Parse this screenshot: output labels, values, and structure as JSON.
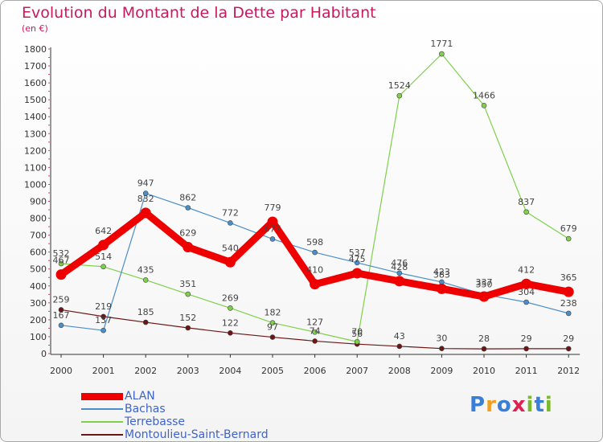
{
  "title": "Evolution du Montant de la Dette par Habitant",
  "unit": "(en €)",
  "brand": {
    "text": "Proxiti",
    "colors": [
      "#3a7fd5",
      "#f0a020",
      "#3a7fd5",
      "#e02050",
      "#7ab82c",
      "#3a7fd5",
      "#7ab82c"
    ]
  },
  "chart_data": {
    "type": "line",
    "title": "Evolution du Montant de la Dette par Habitant",
    "ylabel": "(en €)",
    "xlabel": "",
    "x": [
      "2000",
      "2001",
      "2002",
      "2003",
      "2004",
      "2005",
      "2006",
      "2007",
      "2008",
      "2009",
      "2010",
      "2011",
      "2012"
    ],
    "ylim": [
      0,
      1800
    ],
    "yticks": [
      0,
      100,
      200,
      300,
      400,
      500,
      600,
      700,
      800,
      900,
      1000,
      1100,
      1200,
      1300,
      1400,
      1500,
      1600,
      1700,
      1800
    ],
    "grid": false,
    "legend_position": "bottom-left",
    "series": [
      {
        "name": "ALAN",
        "color": "#ee0000",
        "values": [
          467,
          642,
          832,
          629,
          540,
          779,
          410,
          475,
          428,
          383,
          337,
          412,
          365
        ]
      },
      {
        "name": "Bachas",
        "color": "#4b8ec8",
        "values": [
          167,
          137,
          947,
          862,
          772,
          677,
          598,
          537,
          476,
          423,
          350,
          304,
          238
        ]
      },
      {
        "name": "Terrebasse",
        "color": "#7fd04a",
        "values": [
          532,
          514,
          435,
          351,
          269,
          182,
          127,
          70,
          1524,
          1771,
          1466,
          837,
          679
        ]
      },
      {
        "name": "Montoulieu-Saint-Bernard",
        "color": "#6b1515",
        "values": [
          259,
          219,
          185,
          152,
          122,
          97,
          74,
          56,
          43,
          30,
          28,
          29,
          29
        ]
      }
    ]
  }
}
